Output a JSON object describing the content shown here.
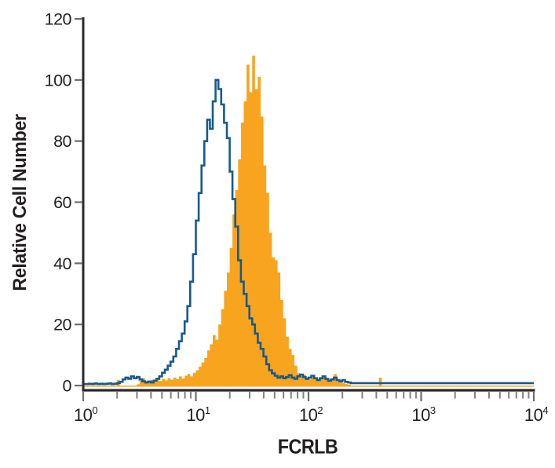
{
  "chart_data": {
    "type": "area",
    "subtype": "flow-cytometry-histogram-overlay",
    "title": "",
    "xlabel": "FCRLB",
    "ylabel": "Relative Cell Number",
    "x_scale": "log10",
    "x_range_log10": [
      0,
      4
    ],
    "ylim": [
      0,
      120
    ],
    "y_ticks": [
      0,
      20,
      40,
      60,
      80,
      100,
      120
    ],
    "x_major_tick_exponents": [
      0,
      1,
      2,
      3,
      4
    ],
    "x_major_tick_base": "10",
    "x_minor_tick_multiples": [
      2,
      3,
      4,
      5,
      6,
      7,
      8,
      9
    ],
    "grid": false,
    "legend": false,
    "colors": {
      "axis": "#2a282b",
      "tick": "#6d6e70",
      "minor_tick": "#808184",
      "label_text": "#231f20",
      "open_series": "#175a8c",
      "filled_series": "#f8a41f"
    },
    "series": [
      {
        "name": "filled-orange-histogram",
        "render": "fill",
        "color": "#f8a41f",
        "peak_x_approx": 32,
        "peak_y_approx": 108,
        "log_start": 0.0,
        "log_step": 0.025,
        "bins": 160,
        "tail_value": 0,
        "values": [
          0,
          0,
          0,
          0,
          0,
          0,
          0,
          0,
          0,
          0,
          0,
          0,
          1.8,
          0,
          0,
          0,
          0,
          0,
          0,
          0.4,
          1.6,
          2.4,
          1.4,
          1.0,
          1.8,
          1.2,
          2.0,
          1.5,
          2.2,
          1.7,
          2.4,
          1.9,
          2.6,
          2.1,
          3.0,
          2.3,
          3.2,
          3.8,
          3.0,
          4.2,
          5.0,
          6.2,
          7.5,
          9.0,
          11.5,
          13.5,
          16.5,
          15.0,
          20,
          25,
          31,
          37,
          45,
          56,
          64,
          74,
          86,
          93,
          105,
          96,
          108,
          97,
          101,
          88,
          72,
          63,
          50,
          42,
          41,
          37,
          28,
          22,
          16,
          12,
          10,
          6.5,
          4.0,
          3.0,
          3.6,
          2.2,
          2.0,
          2.8,
          2.0,
          1.6,
          2.2,
          2.8,
          2.0,
          1.4,
          2.4,
          3.8,
          2.0,
          1.2,
          0.8,
          0.5,
          0.3,
          0,
          0,
          0,
          0,
          0,
          0,
          0,
          0,
          0,
          0,
          2.6
        ]
      },
      {
        "name": "open-blue-histogram",
        "render": "outline",
        "color": "#175a8c",
        "peak_x_approx": 15,
        "peak_y_approx": 100,
        "log_start": 0.0,
        "log_step": 0.025,
        "bins": 160,
        "tail_value": 0.8,
        "values": [
          0.5,
          0.5,
          0.6,
          0.5,
          0.7,
          0.5,
          0.6,
          0.5,
          0.6,
          0.7,
          0.5,
          0.6,
          0.8,
          1.2,
          2.0,
          2.6,
          2.2,
          3.0,
          2.4,
          2.8,
          2.0,
          1.4,
          1.0,
          1.3,
          1.0,
          1.6,
          2.2,
          3.0,
          4.2,
          5.2,
          6.5,
          7.8,
          9.5,
          12,
          14.5,
          17,
          21,
          26,
          34,
          43,
          54,
          63,
          72,
          80,
          87,
          84,
          93,
          100,
          97,
          92,
          86,
          81,
          70,
          61,
          52,
          41,
          34,
          30,
          26,
          22,
          20,
          17,
          14,
          12,
          9.5,
          7,
          5,
          4,
          3.2,
          2.6,
          3.0,
          2.4,
          2.8,
          3.4,
          2.6,
          2.2,
          3.0,
          3.6,
          2.8,
          2.2,
          2.6,
          3.2,
          2.4,
          1.8,
          2.4,
          3.0,
          2.2,
          1.6,
          2.0,
          2.6,
          1.8,
          1.4,
          1.8,
          1.2,
          1.0
        ]
      }
    ]
  }
}
